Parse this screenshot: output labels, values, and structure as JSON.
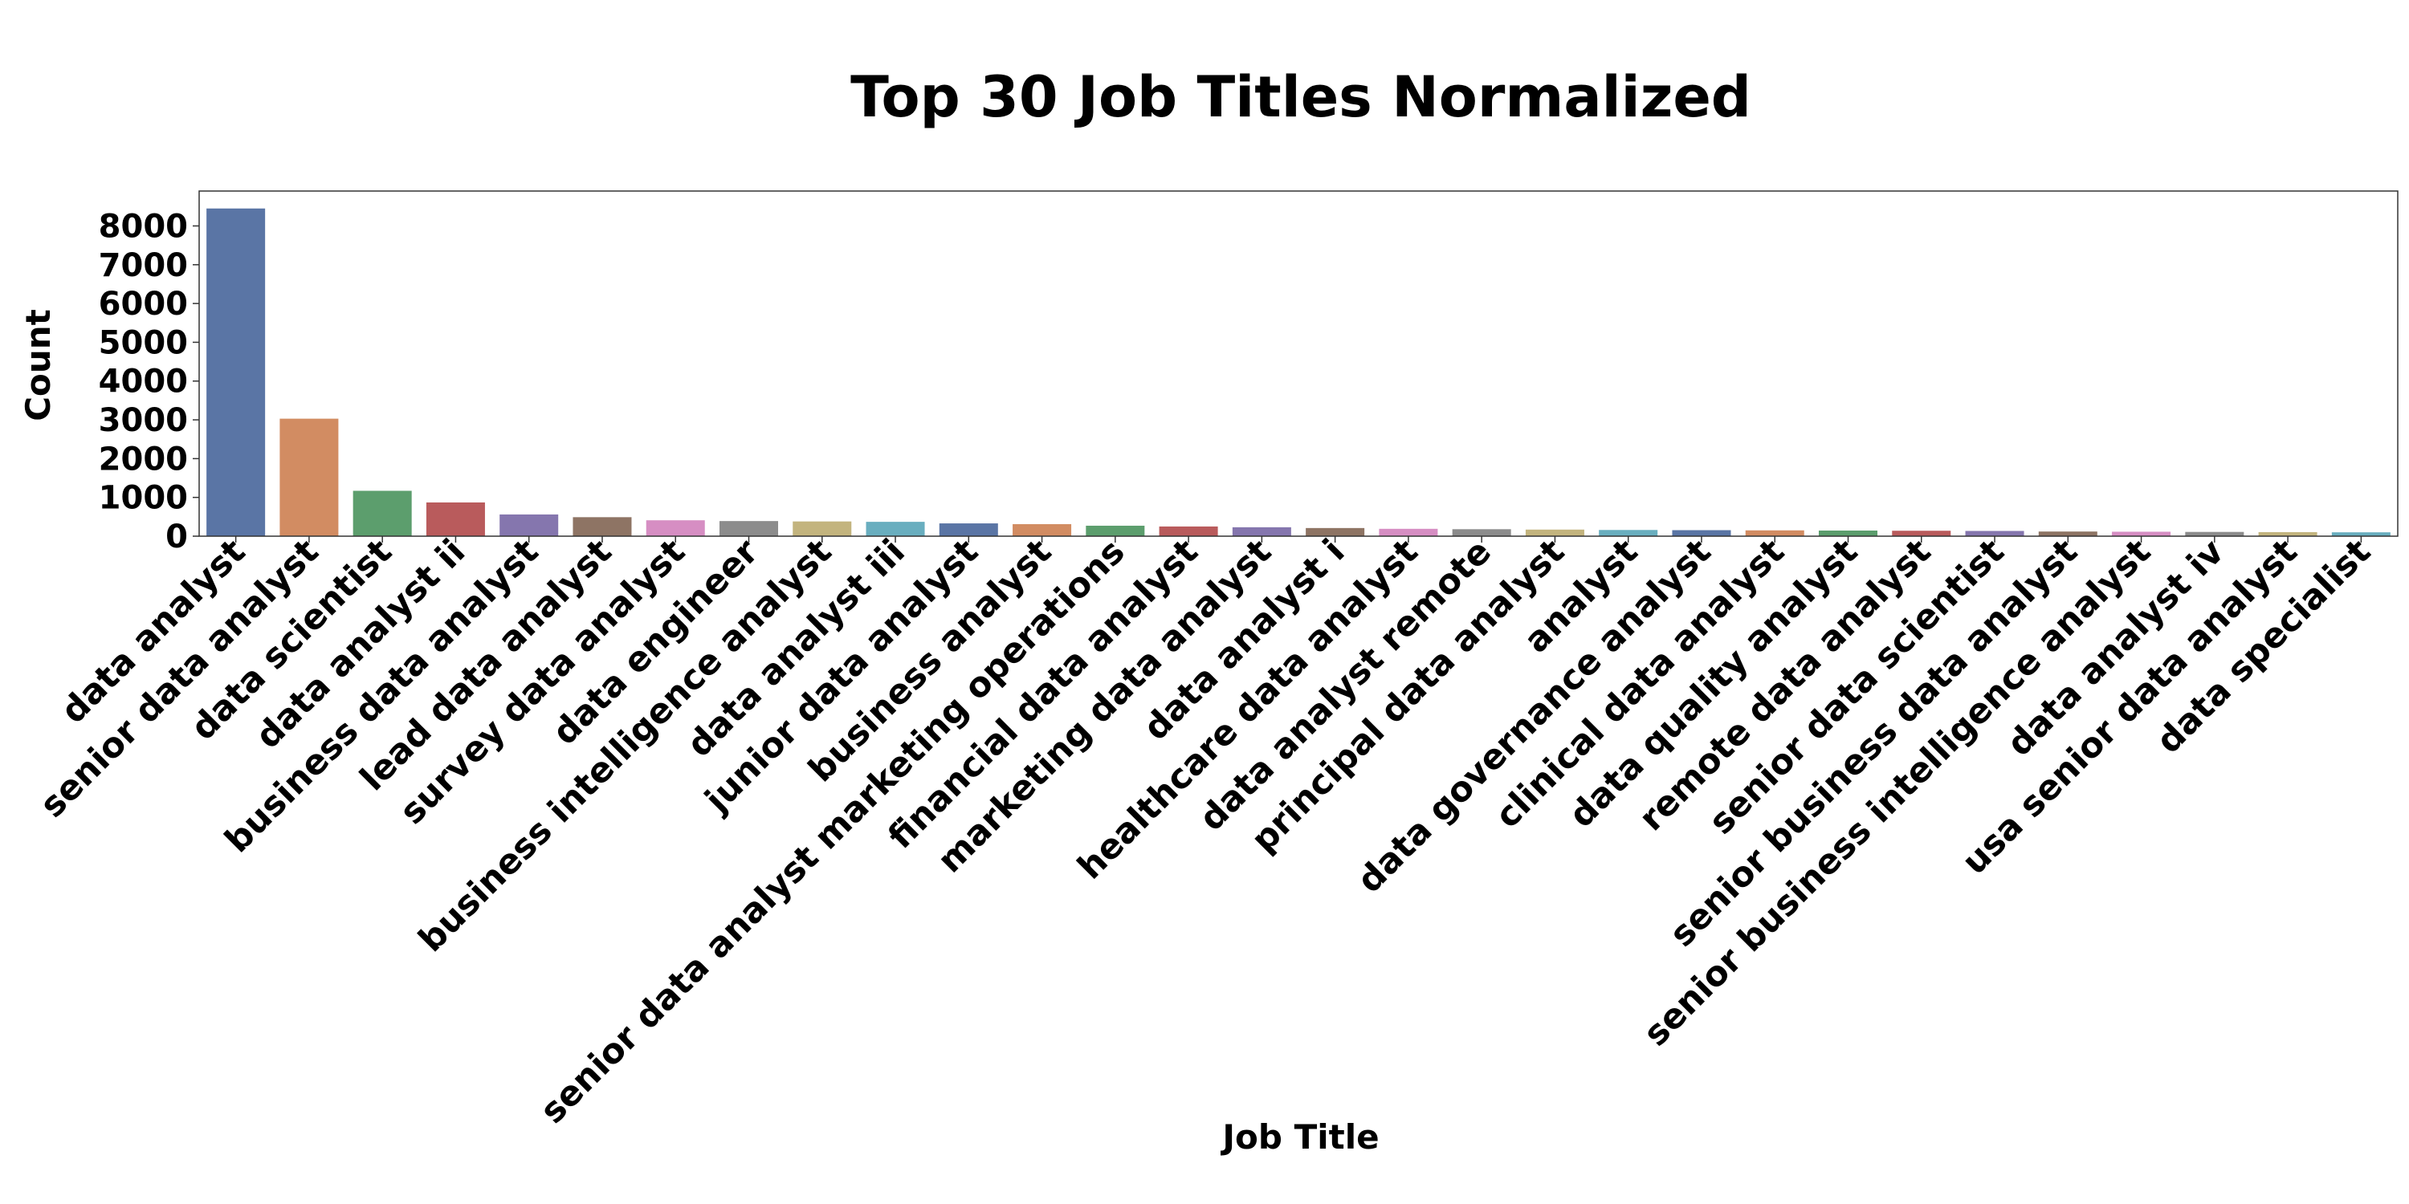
{
  "chart_data": {
    "type": "bar",
    "title": "Top 30 Job Titles Normalized",
    "xlabel": "Job Title",
    "ylabel": "Count",
    "ylim": [
      0,
      8900
    ],
    "yticks": [
      0,
      1000,
      2000,
      3000,
      4000,
      5000,
      6000,
      7000,
      8000
    ],
    "grid": false,
    "categories": [
      "data analyst",
      "senior data analyst",
      "data scientist",
      "data analyst ii",
      "business data analyst",
      "lead data analyst",
      "survey data analyst",
      "data engineer",
      "business intelligence analyst",
      "data analyst iii",
      "junior data analyst",
      "business analyst",
      "senior data analyst marketing operations",
      "financial data analyst",
      "marketing data analyst",
      "data analyst i",
      "healthcare data analyst",
      "data analyst remote",
      "principal data analyst",
      "analyst",
      "data governance analyst",
      "clinical data analyst",
      "data quality analyst",
      "remote data analyst",
      "senior data scientist",
      "senior business data analyst",
      "senior business intelligence analyst",
      "data analyst iv",
      "usa senior data analyst",
      "data specialist"
    ],
    "values": [
      8450,
      3030,
      1170,
      870,
      560,
      490,
      410,
      390,
      380,
      370,
      330,
      310,
      270,
      250,
      230,
      210,
      190,
      180,
      170,
      160,
      155,
      150,
      145,
      140,
      135,
      120,
      115,
      110,
      105,
      100
    ],
    "colors": [
      "#5a75a5",
      "#d28c62",
      "#5c9e6d",
      "#b95b5c",
      "#8576ae",
      "#8e7464",
      "#d68ec3",
      "#8c8c8c",
      "#c3b47e",
      "#69aebf"
    ]
  }
}
